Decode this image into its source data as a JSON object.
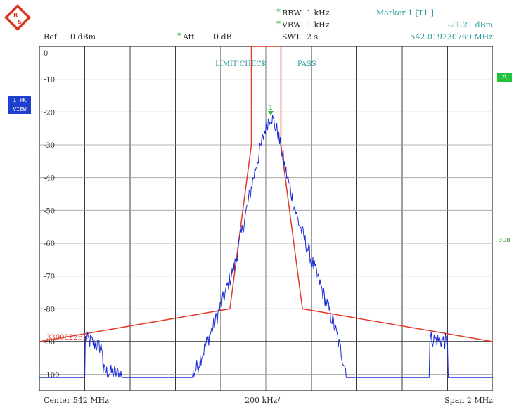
{
  "header": {
    "ref_label": "Ref",
    "ref_value": "0 dBm",
    "att_label": "Att",
    "att_value": "0 dB",
    "rbw_label": "RBW",
    "rbw_value": "1 kHz",
    "vbw_label": "VBW",
    "vbw_value": "1 kHz",
    "swt_label": "SWT",
    "swt_value": "2 s"
  },
  "marker": {
    "title": "Marker 1 [T1 ]",
    "level": "-21.21 dBm",
    "frequency": "542.019230769 MHz",
    "plot_label": "1"
  },
  "side_badges": {
    "trace_line1": "1 PK",
    "trace_line2": "VIEW",
    "a_badge": "A",
    "db_tag": "3DB"
  },
  "limit_check": {
    "label": "LIMIT CHECK",
    "result": "PASS",
    "line_name": "3300822EI"
  },
  "footer": {
    "center": "Center 542 MHz",
    "div": "200 kHz/",
    "span": "Span 2 MHz"
  },
  "colors": {
    "trace": "#1a2bd6",
    "limit": "#e03a2a",
    "grid": "#2a2a2a",
    "annotation_teal": "#2a9a9a",
    "badge_blue": "#1f3fd1",
    "badge_green": "#21c23c",
    "star_green": "#2fb84a"
  },
  "icons": {
    "logo": "rohde-schwarz-diamond-logo"
  },
  "chart_data": {
    "type": "line",
    "x_unit": "MHz",
    "ylim": [
      -105,
      0
    ],
    "xlim": [
      541,
      543
    ],
    "yticks": [
      0,
      -10,
      -20,
      -30,
      -40,
      -50,
      -60,
      -70,
      -80,
      -90,
      -100
    ],
    "grid": true,
    "display_line_y": -90,
    "limit_line": {
      "x": [
        541.0,
        541.84,
        541.935,
        541.935,
        542.065,
        542.065,
        542.16,
        543.0
      ],
      "y": [
        -90,
        -80,
        -30,
        0,
        0,
        -30,
        -80,
        -90
      ]
    },
    "trace_envelope": {
      "x": [
        541.0,
        541.2,
        541.2,
        541.28,
        541.28,
        541.45,
        541.67,
        541.7,
        541.78,
        541.86,
        541.91,
        541.95,
        542.0,
        542.02,
        542.05,
        542.09,
        542.14,
        542.21,
        542.3,
        542.36,
        542.5,
        542.72,
        542.72,
        542.8,
        542.8,
        543.0
      ],
      "y": [
        -101,
        -101,
        -89,
        -92,
        -99,
        -101,
        -101,
        -97,
        -83,
        -67,
        -51,
        -38,
        -24,
        -21,
        -26,
        -39,
        -53,
        -67,
        -85,
        -101,
        -101,
        -101,
        -89,
        -90,
        -101,
        -101
      ]
    }
  }
}
